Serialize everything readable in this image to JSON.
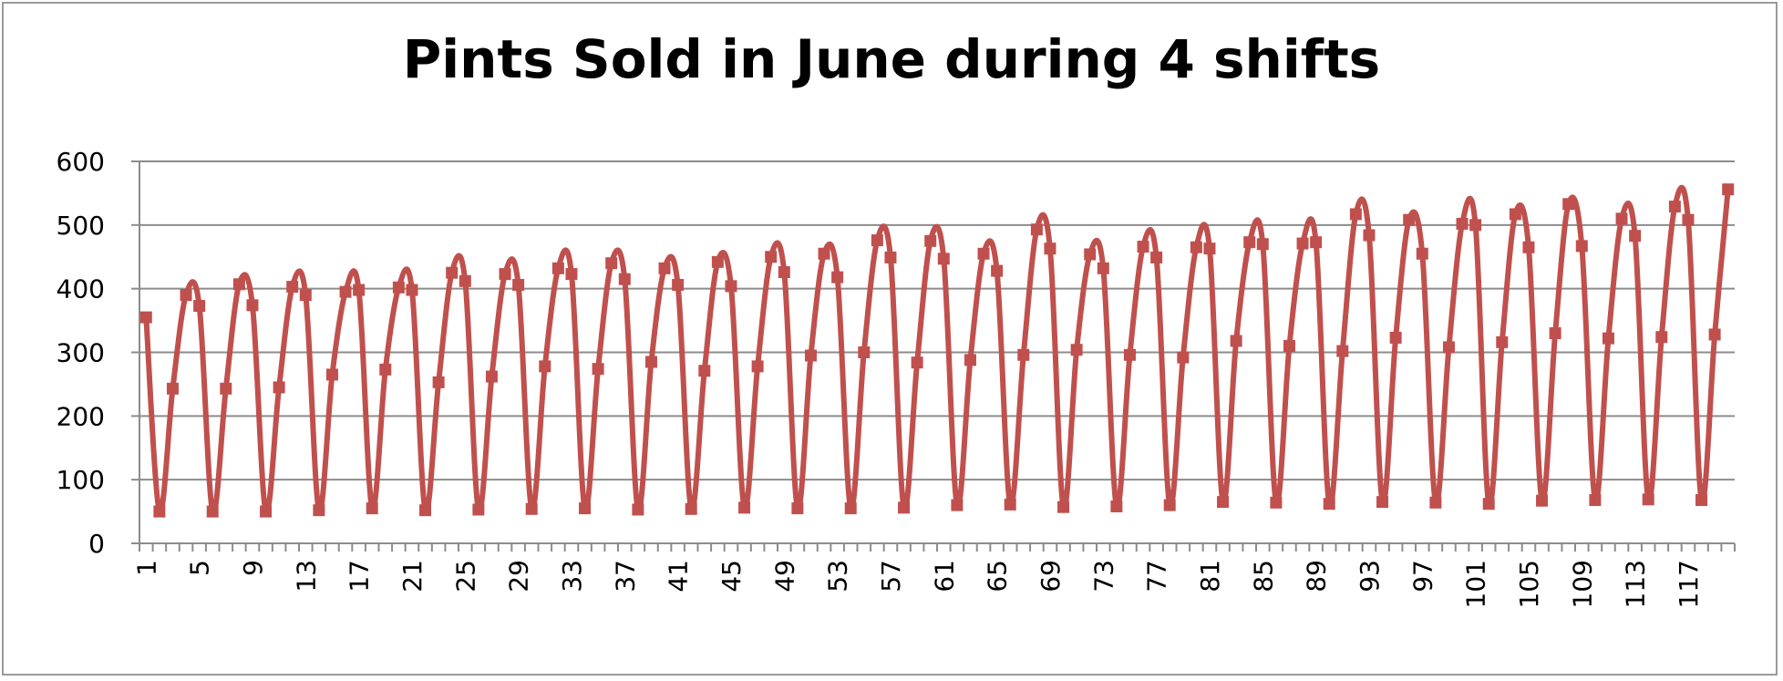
{
  "chart_data": {
    "type": "line",
    "title": "Pints Sold in June during 4 shifts",
    "xlabel": "",
    "ylabel": "",
    "ylim": [
      0,
      600
    ],
    "yticks": [
      0,
      100,
      200,
      300,
      400,
      500,
      600
    ],
    "xticks": [
      1,
      5,
      9,
      13,
      17,
      21,
      25,
      29,
      33,
      37,
      41,
      45,
      49,
      53,
      57,
      61,
      65,
      69,
      73,
      77,
      81,
      85,
      89,
      93,
      97,
      101,
      105,
      109,
      113,
      117
    ],
    "grid": true,
    "legend": "none",
    "series": [
      {
        "color": "#C0504D",
        "marker": "square",
        "x": [
          1,
          2,
          3,
          4,
          5,
          6,
          7,
          8,
          9,
          10,
          11,
          12,
          13,
          14,
          15,
          16,
          17,
          18,
          19,
          20,
          21,
          22,
          23,
          24,
          25,
          26,
          27,
          28,
          29,
          30,
          31,
          32,
          33,
          34,
          35,
          36,
          37,
          38,
          39,
          40,
          41,
          42,
          43,
          44,
          45,
          46,
          47,
          48,
          49,
          50,
          51,
          52,
          53,
          54,
          55,
          56,
          57,
          58,
          59,
          60,
          61,
          62,
          63,
          64,
          65,
          66,
          67,
          68,
          69,
          70,
          71,
          72,
          73,
          74,
          75,
          76,
          77,
          78,
          79,
          80,
          81,
          82,
          83,
          84,
          85,
          86,
          87,
          88,
          89,
          90,
          91,
          92,
          93,
          94,
          95,
          96,
          97,
          98,
          99,
          100,
          101,
          102,
          103,
          104,
          105,
          106,
          107,
          108,
          109,
          110,
          111,
          112,
          113,
          114,
          115,
          116,
          117,
          118,
          119,
          120
        ],
        "values": [
          355,
          50,
          243,
          390,
          373,
          50,
          243,
          407,
          374,
          50,
          245,
          403,
          390,
          52,
          265,
          395,
          398,
          55,
          273,
          402,
          398,
          52,
          253,
          425,
          412,
          53,
          262,
          423,
          406,
          54,
          278,
          432,
          423,
          55,
          274,
          440,
          415,
          53,
          285,
          432,
          406,
          54,
          271,
          442,
          404,
          56,
          278,
          450,
          426,
          55,
          295,
          455,
          418,
          55,
          300,
          476,
          449,
          56,
          284,
          475,
          447,
          60,
          288,
          455,
          428,
          61,
          296,
          493,
          463,
          57,
          304,
          454,
          432,
          58,
          296,
          466,
          449,
          60,
          292,
          465,
          463,
          65,
          318,
          473,
          470,
          64,
          310,
          471,
          473,
          62,
          302,
          517,
          484,
          65,
          323,
          508,
          455,
          64,
          308,
          502,
          500,
          62,
          316,
          517,
          465,
          67,
          330,
          533,
          467,
          68,
          322,
          510,
          483,
          69,
          324,
          529,
          508,
          68,
          328,
          556
        ]
      }
    ]
  }
}
